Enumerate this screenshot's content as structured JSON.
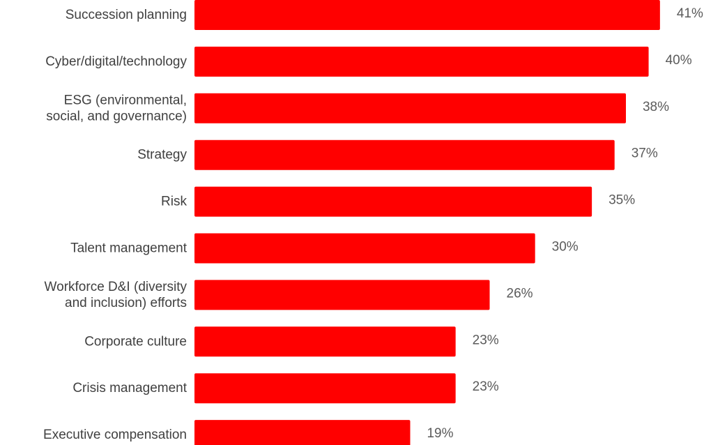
{
  "chart_data": {
    "type": "bar",
    "orientation": "horizontal",
    "categories": [
      [
        "Succession planning"
      ],
      [
        "Cyber/digital/technology"
      ],
      [
        "ESG (environmental,",
        "social, and governance)"
      ],
      [
        "Strategy"
      ],
      [
        "Risk"
      ],
      [
        "Talent management"
      ],
      [
        "Workforce D&I (diversity",
        "and inclusion) efforts"
      ],
      [
        "Corporate culture"
      ],
      [
        "Crisis management"
      ],
      [
        "Executive compensation"
      ]
    ],
    "values": [
      41,
      40,
      38,
      37,
      35,
      30,
      26,
      23,
      23,
      19
    ],
    "data_labels": [
      "41%",
      "40%",
      "38%",
      "37%",
      "35%",
      "30%",
      "26%",
      "23%",
      "23%",
      "19%"
    ],
    "bar_color": "#ff0000",
    "title": "",
    "xlabel": "",
    "ylabel": "",
    "xlim": [
      0,
      41.5
    ],
    "grid": false,
    "legend": "none"
  }
}
